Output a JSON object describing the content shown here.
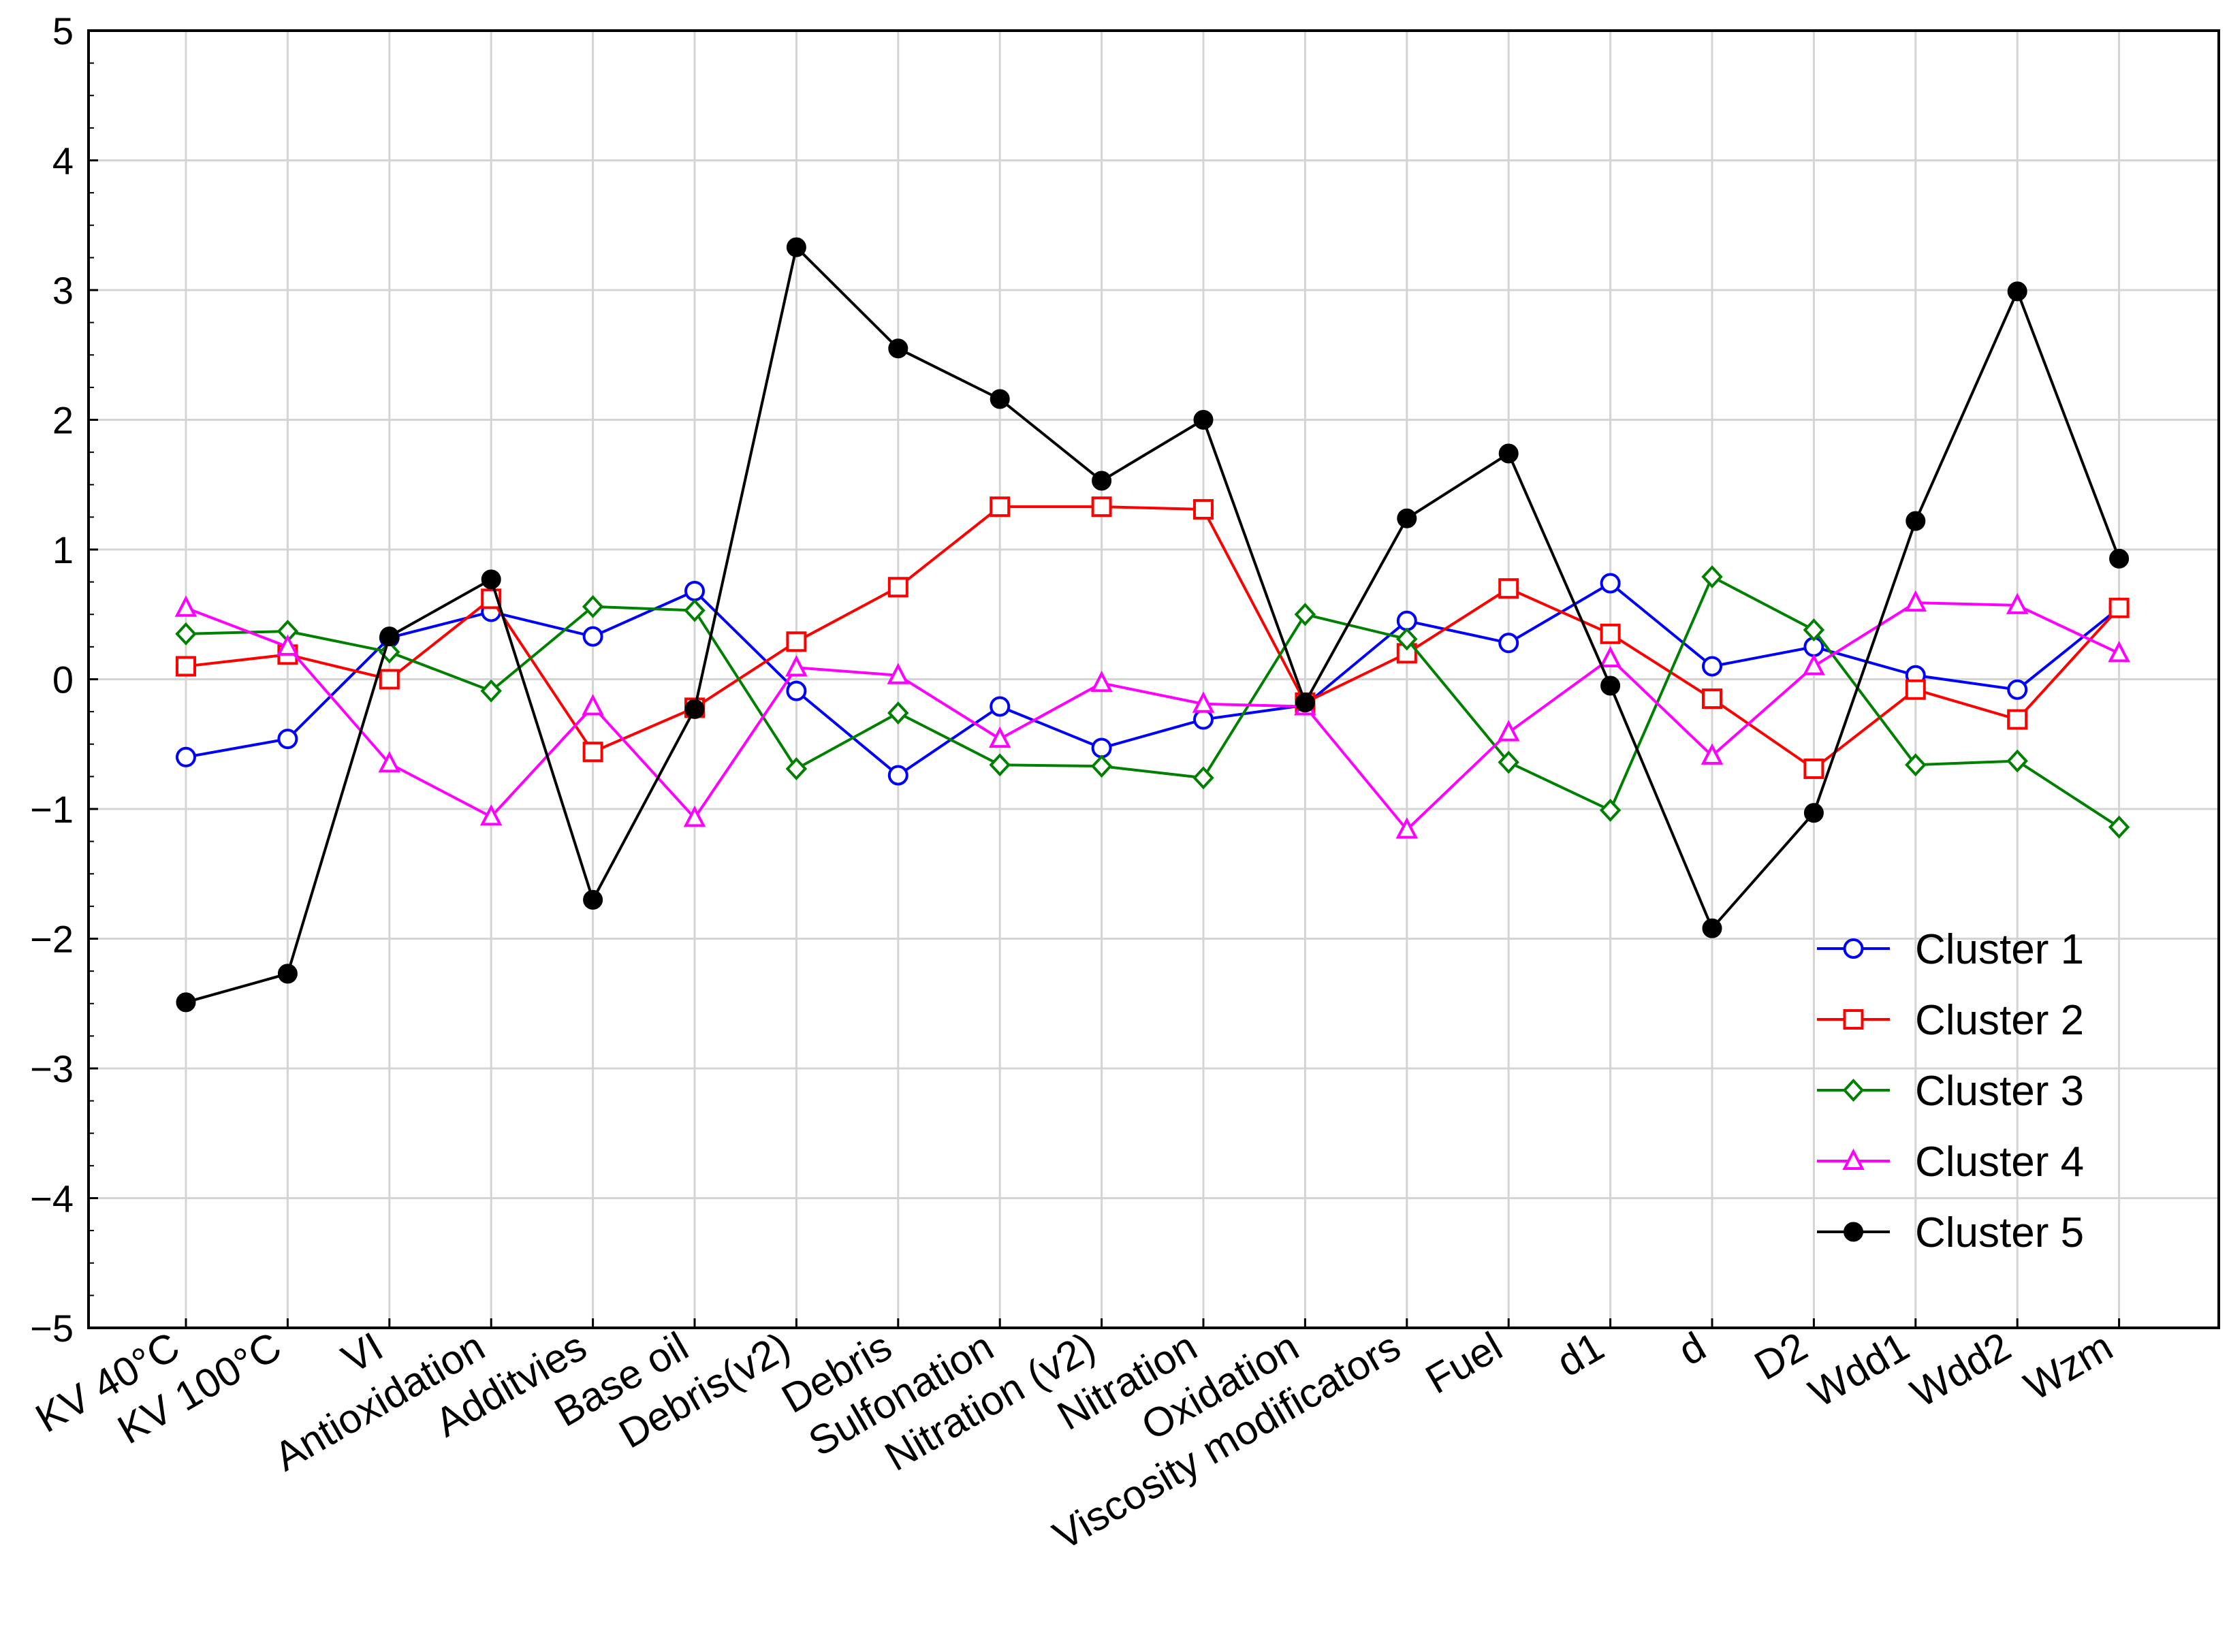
{
  "chart_data": {
    "type": "line",
    "title": "",
    "xlabel": "",
    "ylabel": "",
    "ylim": [
      -5,
      5
    ],
    "yticks": [
      5,
      4,
      3,
      2,
      1,
      0,
      -1,
      -2,
      -3,
      -4,
      -5
    ],
    "ytick_labels": [
      "5",
      "4",
      "3",
      "2",
      "1",
      "0",
      "−1",
      "−2",
      "−3",
      "−4",
      "−5"
    ],
    "grid": true,
    "legend_position": "bottom-right",
    "categories": [
      "KV 40°C",
      "KV 100°C",
      "VI",
      "Antioxidation",
      "Additvies",
      "Base oil",
      "Debris(v2)",
      "Debris",
      "Sulfonation",
      "Nitration (v2)",
      "Nitration",
      "Oxidation",
      "Viscosity modificators",
      "Fuel",
      "d1",
      "d",
      "D2",
      "Wdd1",
      "Wdd2",
      "Wzm"
    ],
    "series": [
      {
        "name": "Cluster 1",
        "color": "#0000ff",
        "marker": "circle",
        "values": [
          -0.6,
          -0.46,
          0.32,
          0.52,
          0.33,
          0.68,
          -0.09,
          -0.74,
          -0.21,
          -0.53,
          -0.31,
          -0.2,
          0.45,
          0.28,
          0.74,
          0.1,
          0.25,
          0.03,
          -0.08,
          0.55
        ]
      },
      {
        "name": "Cluster 2",
        "color": "#ff0000",
        "marker": "square",
        "values": [
          0.1,
          0.19,
          0.0,
          0.62,
          -0.56,
          -0.22,
          0.29,
          0.71,
          1.33,
          1.33,
          1.31,
          -0.18,
          0.2,
          0.7,
          0.35,
          -0.15,
          -0.69,
          -0.08,
          -0.31,
          0.55
        ]
      },
      {
        "name": "Cluster 3",
        "color": "#008000",
        "marker": "diamond",
        "values": [
          0.35,
          0.37,
          0.21,
          -0.09,
          0.56,
          0.53,
          -0.69,
          -0.26,
          -0.66,
          -0.67,
          -0.76,
          0.5,
          0.31,
          -0.64,
          -1.01,
          0.79,
          0.38,
          -0.66,
          -0.63,
          -1.14
        ]
      },
      {
        "name": "Cluster 4",
        "color": "#ff00ff",
        "marker": "triangle",
        "values": [
          0.55,
          0.25,
          -0.65,
          -1.06,
          -0.21,
          -1.07,
          0.09,
          0.03,
          -0.46,
          -0.03,
          -0.19,
          -0.21,
          -1.16,
          -0.41,
          0.16,
          -0.59,
          0.1,
          0.59,
          0.57,
          0.2
        ]
      },
      {
        "name": "Cluster 5",
        "color": "#000000",
        "marker": "filled-circle",
        "values": [
          -2.49,
          -2.27,
          0.33,
          0.77,
          -1.7,
          -0.23,
          3.33,
          2.55,
          2.16,
          1.53,
          2.0,
          -0.18,
          1.24,
          1.74,
          -0.05,
          -1.92,
          -1.03,
          1.22,
          2.99,
          0.93
        ]
      }
    ]
  }
}
